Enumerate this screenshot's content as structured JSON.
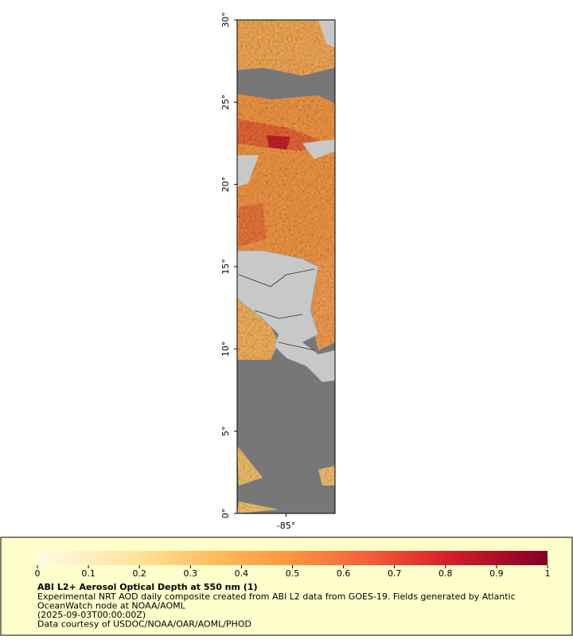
{
  "map": {
    "lat_ticks": [
      {
        "value": 30,
        "label": "30°"
      },
      {
        "value": 25,
        "label": "25°"
      },
      {
        "value": 20,
        "label": "20°"
      },
      {
        "value": 15,
        "label": "15°"
      },
      {
        "value": 10,
        "label": "10°"
      },
      {
        "value": 5,
        "label": "5°"
      },
      {
        "value": 0,
        "label": "0°"
      }
    ],
    "lon_ticks": [
      {
        "value": -85,
        "label": "-85°"
      }
    ],
    "latlim": [
      0,
      30
    ],
    "lonlim": [
      -88,
      -82
    ]
  },
  "legend": {
    "colorbar_lim": [
      0,
      1
    ],
    "colorbar_ticks": [
      0,
      0.1,
      0.2,
      0.3,
      0.4,
      0.5,
      0.6,
      0.7,
      0.8,
      0.9,
      1
    ],
    "title": "ABI L2+ Aerosol Optical Depth at 550 nm (1)",
    "lines": [
      "Experimental NRT AOD daily composite created from ABI L2 data from GOES-19. Fields generated by Atlantic",
      "OceanWatch node at NOAA/AOML",
      "(2025-09-03T00:00:00Z)",
      "Data courtesy of USDOC/NOAA/OAR/AOML/PHOD"
    ]
  }
}
